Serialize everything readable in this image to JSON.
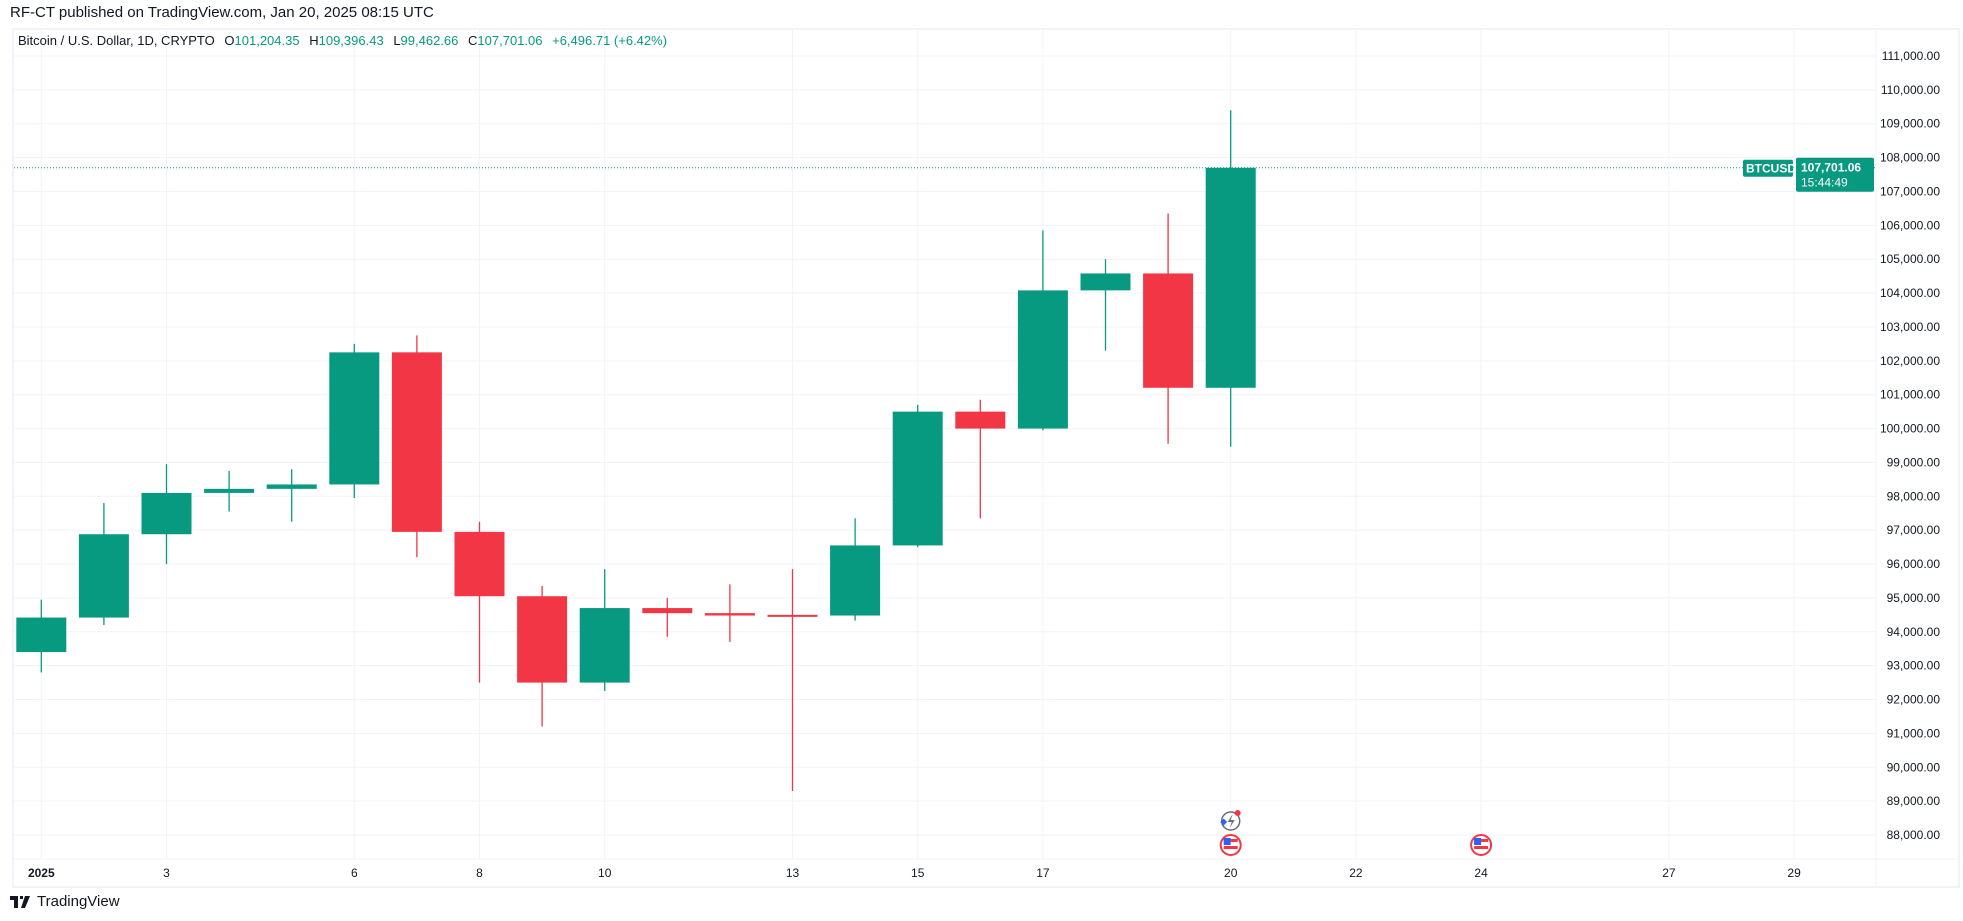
{
  "header": {
    "published": "RF-CT published on TradingView.com, Jan 20, 2025 08:15 UTC"
  },
  "legend": {
    "symbol": "Bitcoin / U.S. Dollar, 1D, CRYPTO",
    "o_label": "O",
    "o": "101,204.35",
    "h_label": "H",
    "h": "109,396.43",
    "l_label": "L",
    "l": "99,462.66",
    "c_label": "C",
    "c": "107,701.06",
    "change": "+6,496.71 (+6.42%)"
  },
  "price_label": {
    "ticker": "BTCUSD",
    "price": "107,701.06",
    "countdown": "15:44:49"
  },
  "footer": {
    "brand": "TradingView"
  },
  "colors": {
    "up": "#089981",
    "down": "#f23645",
    "grid": "#f0f3fa",
    "text": "#131722"
  },
  "chart_data": {
    "type": "candlestick",
    "title": "",
    "ylim": [
      88000,
      111000
    ],
    "y_ticks": [
      "88,000.00",
      "89,000.00",
      "90,000.00",
      "91,000.00",
      "92,000.00",
      "93,000.00",
      "94,000.00",
      "95,000.00",
      "96,000.00",
      "97,000.00",
      "98,000.00",
      "99,000.00",
      "100,000.00",
      "101,000.00",
      "102,000.00",
      "103,000.00",
      "104,000.00",
      "105,000.00",
      "106,000.00",
      "107,000.00",
      "108,000.00",
      "109,000.00",
      "110,000.00",
      "111,000.00"
    ],
    "x_ticks": [
      {
        "day": 1,
        "label": "2025"
      },
      {
        "day": 3,
        "label": "3"
      },
      {
        "day": 6,
        "label": "6"
      },
      {
        "day": 8,
        "label": "8"
      },
      {
        "day": 10,
        "label": "10"
      },
      {
        "day": 13,
        "label": "13"
      },
      {
        "day": 15,
        "label": "15"
      },
      {
        "day": 17,
        "label": "17"
      },
      {
        "day": 20,
        "label": "20"
      },
      {
        "day": 22,
        "label": "22"
      },
      {
        "day": 24,
        "label": "24"
      },
      {
        "day": 27,
        "label": "27"
      },
      {
        "day": 29,
        "label": "29"
      }
    ],
    "candles": [
      {
        "date": "2025-01-01",
        "o": 93400,
        "h": 94950,
        "l": 92800,
        "c": 94420
      },
      {
        "date": "2025-01-02",
        "o": 94420,
        "h": 97800,
        "l": 94200,
        "c": 96880
      },
      {
        "date": "2025-01-03",
        "o": 96880,
        "h": 98950,
        "l": 96000,
        "c": 98100
      },
      {
        "date": "2025-01-04",
        "o": 98100,
        "h": 98750,
        "l": 97550,
        "c": 98220
      },
      {
        "date": "2025-01-05",
        "o": 98220,
        "h": 98800,
        "l": 97250,
        "c": 98350
      },
      {
        "date": "2025-01-06",
        "o": 98350,
        "h": 102500,
        "l": 97950,
        "c": 102250
      },
      {
        "date": "2025-01-07",
        "o": 102250,
        "h": 102750,
        "l": 96200,
        "c": 96950
      },
      {
        "date": "2025-01-08",
        "o": 96950,
        "h": 97250,
        "l": 92500,
        "c": 95050
      },
      {
        "date": "2025-01-09",
        "o": 95050,
        "h": 95350,
        "l": 91200,
        "c": 92500
      },
      {
        "date": "2025-01-10",
        "o": 92500,
        "h": 95850,
        "l": 92250,
        "c": 94700
      },
      {
        "date": "2025-01-11",
        "o": 94700,
        "h": 95000,
        "l": 93850,
        "c": 94550
      },
      {
        "date": "2025-01-12",
        "o": 94550,
        "h": 95400,
        "l": 93700,
        "c": 94480
      },
      {
        "date": "2025-01-13",
        "o": 94500,
        "h": 95850,
        "l": 89300,
        "c": 94480
      },
      {
        "date": "2025-01-14",
        "o": 94480,
        "h": 97350,
        "l": 94330,
        "c": 96550
      },
      {
        "date": "2025-01-15",
        "o": 96550,
        "h": 100700,
        "l": 96500,
        "c": 100500
      },
      {
        "date": "2025-01-16",
        "o": 100500,
        "h": 100850,
        "l": 97350,
        "c": 100000
      },
      {
        "date": "2025-01-17",
        "o": 100000,
        "h": 105850,
        "l": 99950,
        "c": 104080
      },
      {
        "date": "2025-01-18",
        "o": 104080,
        "h": 105000,
        "l": 102300,
        "c": 104580
      },
      {
        "date": "2025-01-19",
        "o": 104580,
        "h": 106350,
        "l": 99550,
        "c": 101204.35
      },
      {
        "date": "2025-01-20",
        "o": 101204.35,
        "h": 109396.43,
        "l": 99462.66,
        "c": 107701.06
      }
    ],
    "last_price": 107701.06,
    "events": [
      {
        "day": 20,
        "icon": "lightning-icon"
      },
      {
        "day": 20,
        "icon": "us-flag-icon"
      },
      {
        "day": 24,
        "icon": "us-flag-icon"
      }
    ]
  }
}
